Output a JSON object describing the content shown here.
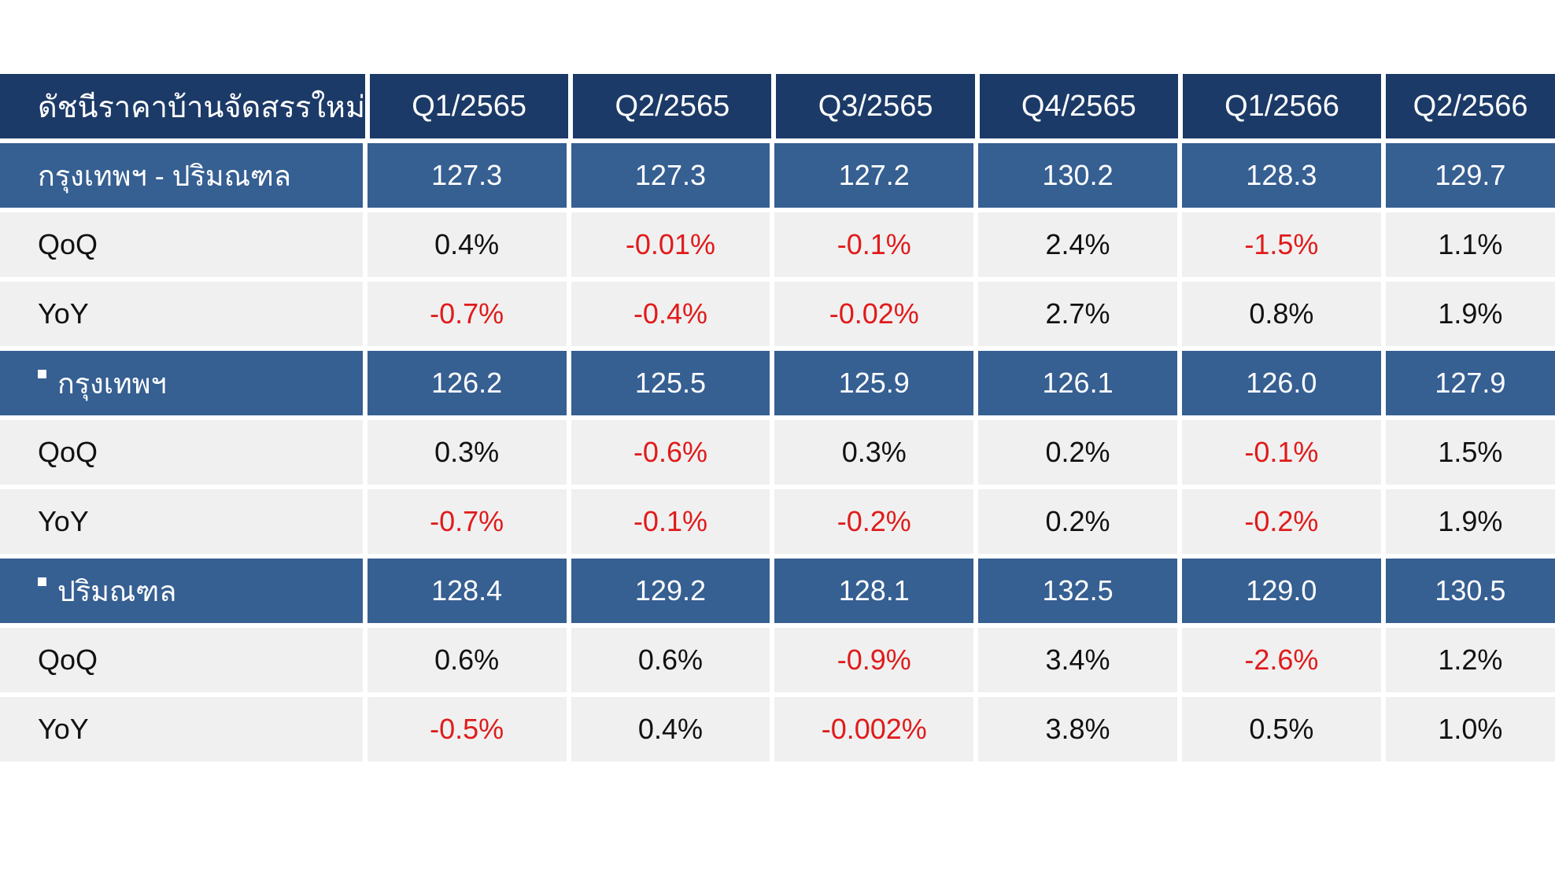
{
  "chart_data": {
    "type": "table",
    "columns": [
      "ดัชนีราคาบ้านจัดสรรใหม่",
      "Q1/2565",
      "Q2/2565",
      "Q3/2565",
      "Q4/2565",
      "Q1/2566",
      "Q2/2566"
    ],
    "rows": [
      {
        "label": "กรุงเทพฯ - ปริมณฑล",
        "kind": "index",
        "bullet": false,
        "values": [
          "127.3",
          "127.3",
          "127.2",
          "130.2",
          "128.3",
          "129.7"
        ],
        "negative": [
          false,
          false,
          false,
          false,
          false,
          false
        ]
      },
      {
        "label": "QoQ",
        "kind": "sub",
        "bullet": false,
        "values": [
          "0.4%",
          "-0.01%",
          "-0.1%",
          "2.4%",
          "-1.5%",
          "1.1%"
        ],
        "negative": [
          false,
          true,
          true,
          false,
          true,
          false
        ]
      },
      {
        "label": "YoY",
        "kind": "sub",
        "bullet": false,
        "values": [
          "-0.7%",
          "-0.4%",
          "-0.02%",
          "2.7%",
          "0.8%",
          "1.9%"
        ],
        "negative": [
          true,
          true,
          true,
          false,
          false,
          false
        ]
      },
      {
        "label": "กรุงเทพฯ",
        "kind": "index",
        "bullet": true,
        "values": [
          "126.2",
          "125.5",
          "125.9",
          "126.1",
          "126.0",
          "127.9"
        ],
        "negative": [
          false,
          false,
          false,
          false,
          false,
          false
        ]
      },
      {
        "label": "QoQ",
        "kind": "sub",
        "bullet": false,
        "values": [
          "0.3%",
          "-0.6%",
          "0.3%",
          "0.2%",
          "-0.1%",
          "1.5%"
        ],
        "negative": [
          false,
          true,
          false,
          false,
          true,
          false
        ]
      },
      {
        "label": "YoY",
        "kind": "sub",
        "bullet": false,
        "values": [
          "-0.7%",
          "-0.1%",
          "-0.2%",
          "0.2%",
          "-0.2%",
          "1.9%"
        ],
        "negative": [
          true,
          true,
          true,
          false,
          true,
          false
        ]
      },
      {
        "label": "ปริมณฑล",
        "kind": "index",
        "bullet": true,
        "values": [
          "128.4",
          "129.2",
          "128.1",
          "132.5",
          "129.0",
          "130.5"
        ],
        "negative": [
          false,
          false,
          false,
          false,
          false,
          false
        ]
      },
      {
        "label": "QoQ",
        "kind": "sub",
        "bullet": false,
        "values": [
          "0.6%",
          "0.6%",
          "-0.9%",
          "3.4%",
          "-2.6%",
          "1.2%"
        ],
        "negative": [
          false,
          false,
          true,
          false,
          true,
          false
        ]
      },
      {
        "label": "YoY",
        "kind": "sub",
        "bullet": false,
        "values": [
          "-0.5%",
          "0.4%",
          "-0.002%",
          "3.8%",
          "0.5%",
          "1.0%"
        ],
        "negative": [
          true,
          false,
          true,
          false,
          false,
          false
        ]
      }
    ]
  },
  "colors": {
    "header_bg": "#1c3a67",
    "index_row_bg": "#365f92",
    "sub_row_bg": "#f0f0f0",
    "negative_text": "#e01b1b",
    "positive_text": "#111111"
  }
}
